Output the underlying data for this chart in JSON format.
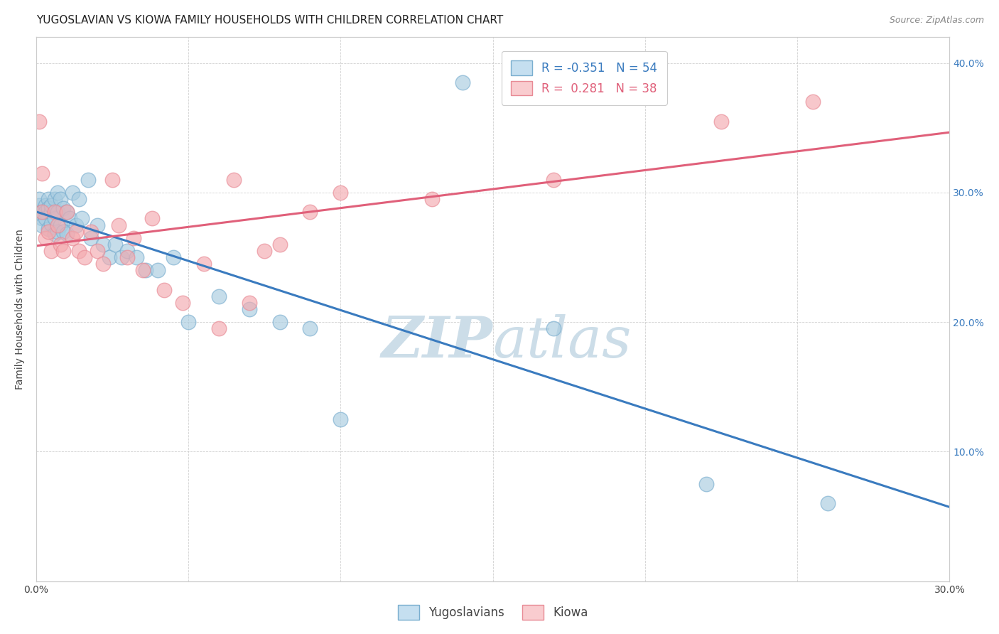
{
  "title": "YUGOSLAVIAN VS KIOWA FAMILY HOUSEHOLDS WITH CHILDREN CORRELATION CHART",
  "source": "Source: ZipAtlas.com",
  "ylabel": "Family Households with Children",
  "xlim": [
    0.0,
    0.3
  ],
  "ylim": [
    0.0,
    0.42
  ],
  "x_ticks": [
    0.0,
    0.05,
    0.1,
    0.15,
    0.2,
    0.25,
    0.3
  ],
  "x_tick_labels": [
    "0.0%",
    "",
    "",
    "",
    "",
    "",
    "30.0%"
  ],
  "y_ticks_left": [
    0.1,
    0.2,
    0.3,
    0.4
  ],
  "y_ticks_right": [
    0.1,
    0.2,
    0.3,
    0.4
  ],
  "y_tick_labels_right": [
    "10.0%",
    "20.0%",
    "30.0%",
    "40.0%"
  ],
  "blue_scatter_color": "#a8cce0",
  "pink_scatter_color": "#f4aaaf",
  "blue_line_color": "#3a7bbf",
  "pink_line_color": "#e0607a",
  "blue_edge_color": "#7aaecf",
  "pink_edge_color": "#e88a95",
  "yug_x": [
    0.001,
    0.001,
    0.001,
    0.002,
    0.002,
    0.002,
    0.003,
    0.003,
    0.003,
    0.004,
    0.004,
    0.004,
    0.005,
    0.005,
    0.005,
    0.006,
    0.006,
    0.006,
    0.007,
    0.007,
    0.007,
    0.008,
    0.008,
    0.009,
    0.009,
    0.01,
    0.01,
    0.011,
    0.012,
    0.013,
    0.014,
    0.015,
    0.017,
    0.018,
    0.02,
    0.022,
    0.024,
    0.026,
    0.028,
    0.03,
    0.033,
    0.036,
    0.04,
    0.045,
    0.05,
    0.06,
    0.07,
    0.08,
    0.09,
    0.1,
    0.14,
    0.17,
    0.22,
    0.26
  ],
  "yug_y": [
    0.285,
    0.29,
    0.295,
    0.28,
    0.285,
    0.275,
    0.29,
    0.285,
    0.28,
    0.295,
    0.288,
    0.272,
    0.285,
    0.29,
    0.276,
    0.295,
    0.28,
    0.268,
    0.3,
    0.285,
    0.27,
    0.295,
    0.275,
    0.288,
    0.27,
    0.285,
    0.268,
    0.28,
    0.3,
    0.275,
    0.295,
    0.28,
    0.31,
    0.265,
    0.275,
    0.26,
    0.25,
    0.26,
    0.25,
    0.255,
    0.25,
    0.24,
    0.24,
    0.25,
    0.2,
    0.22,
    0.21,
    0.2,
    0.195,
    0.125,
    0.385,
    0.195,
    0.075,
    0.06
  ],
  "kiowa_x": [
    0.001,
    0.002,
    0.002,
    0.003,
    0.004,
    0.005,
    0.006,
    0.007,
    0.008,
    0.009,
    0.01,
    0.012,
    0.013,
    0.014,
    0.016,
    0.018,
    0.02,
    0.022,
    0.025,
    0.027,
    0.03,
    0.032,
    0.035,
    0.038,
    0.042,
    0.048,
    0.055,
    0.06,
    0.065,
    0.07,
    0.075,
    0.08,
    0.09,
    0.1,
    0.13,
    0.17,
    0.225,
    0.255
  ],
  "kiowa_y": [
    0.355,
    0.285,
    0.315,
    0.265,
    0.27,
    0.255,
    0.285,
    0.275,
    0.26,
    0.255,
    0.285,
    0.265,
    0.27,
    0.255,
    0.25,
    0.27,
    0.255,
    0.245,
    0.31,
    0.275,
    0.25,
    0.265,
    0.24,
    0.28,
    0.225,
    0.215,
    0.245,
    0.195,
    0.31,
    0.215,
    0.255,
    0.26,
    0.285,
    0.3,
    0.295,
    0.31,
    0.355,
    0.37
  ],
  "watermark_line1": "ZIP",
  "watermark_line2": "atlas",
  "watermark_color": "#ccdde8",
  "background_color": "#ffffff",
  "grid_color": "#cccccc",
  "title_fontsize": 11,
  "axis_label_fontsize": 10,
  "tick_fontsize": 10,
  "legend_fontsize": 12
}
